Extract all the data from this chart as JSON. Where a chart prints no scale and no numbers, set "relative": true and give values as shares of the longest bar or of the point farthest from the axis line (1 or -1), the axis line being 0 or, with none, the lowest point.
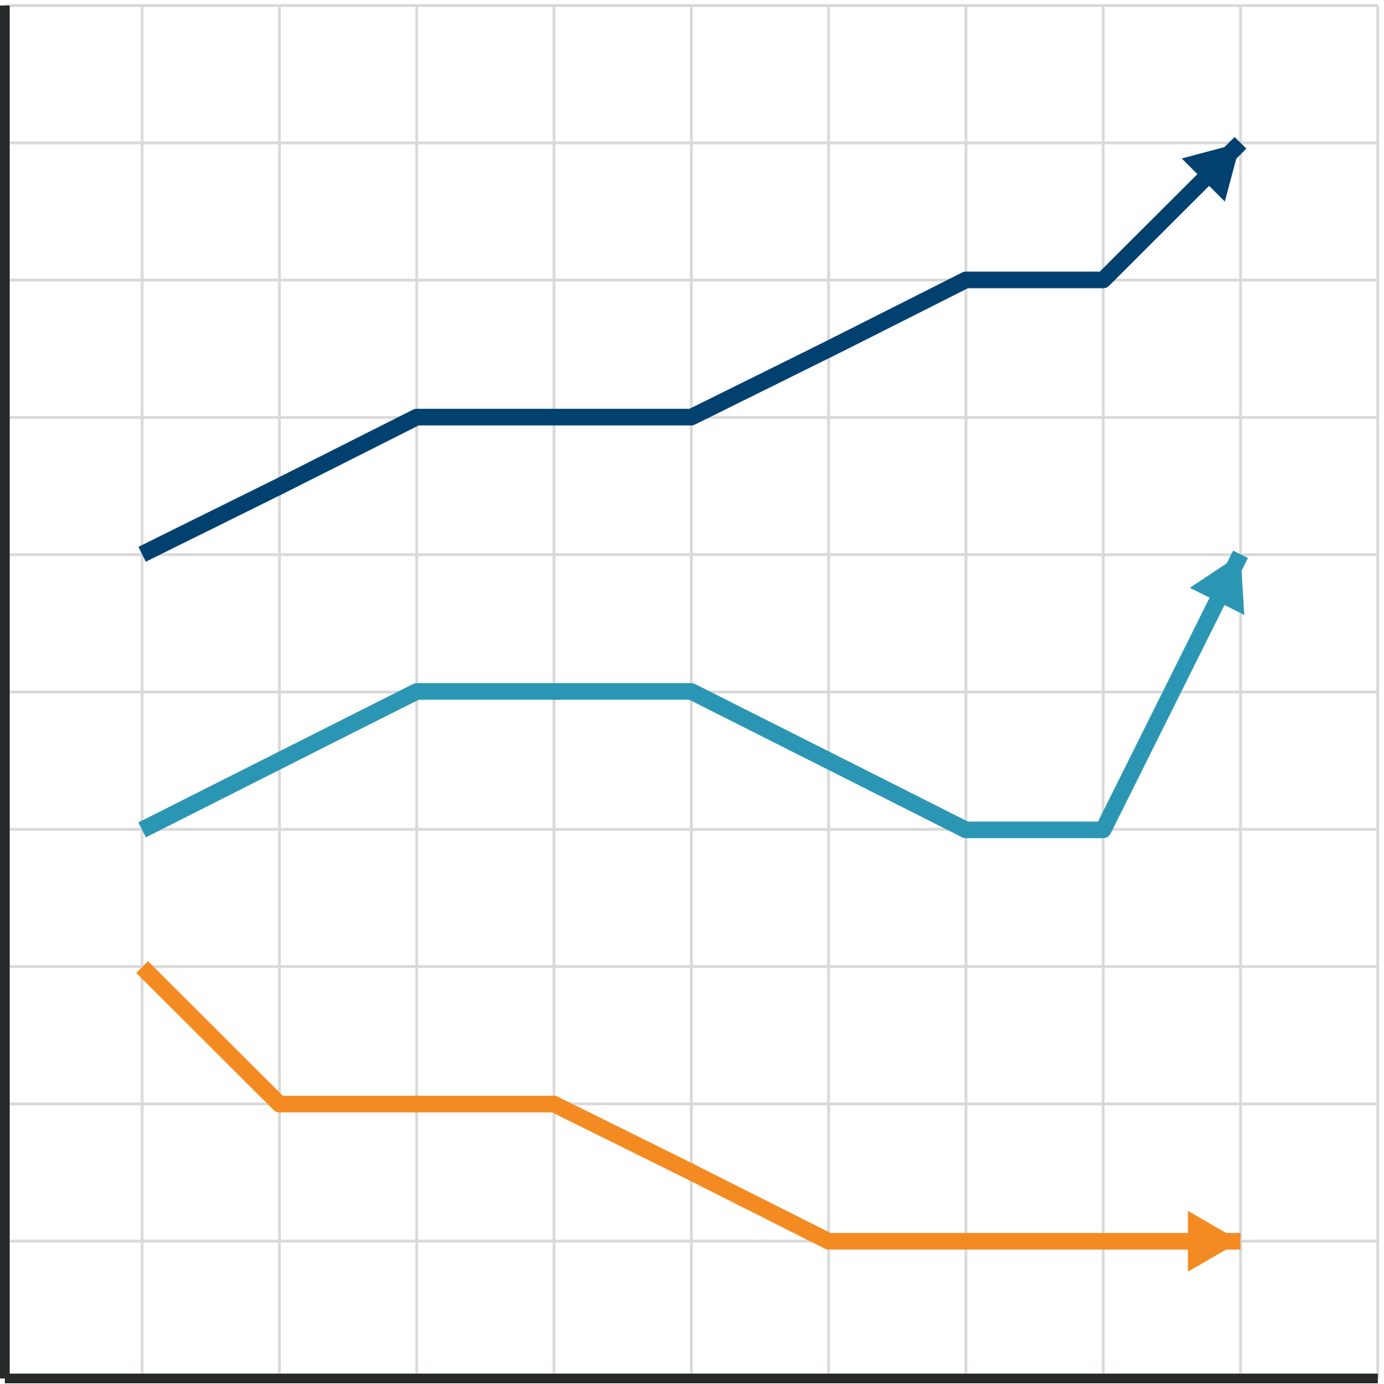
{
  "chart_data": {
    "type": "line",
    "relative": true,
    "grid": true,
    "categories": [
      null,
      null,
      null,
      null,
      null,
      null,
      null,
      null,
      null
    ],
    "series": [
      {
        "color": "#02416f",
        "values": [
          0.667,
          0.722,
          0.778,
          0.778,
          0.778,
          0.833,
          0.889,
          0.889,
          1
        ]
      },
      {
        "color": "#2b96b3",
        "values": [
          0.444,
          0.5,
          0.556,
          0.556,
          0.556,
          0.5,
          0.444,
          0.444,
          0.667
        ]
      },
      {
        "color": "#f48b22",
        "values": [
          0.333,
          0.222,
          0.222,
          0.222,
          0.167,
          0.111,
          0.111,
          0.111,
          0.111
        ]
      }
    ]
  }
}
